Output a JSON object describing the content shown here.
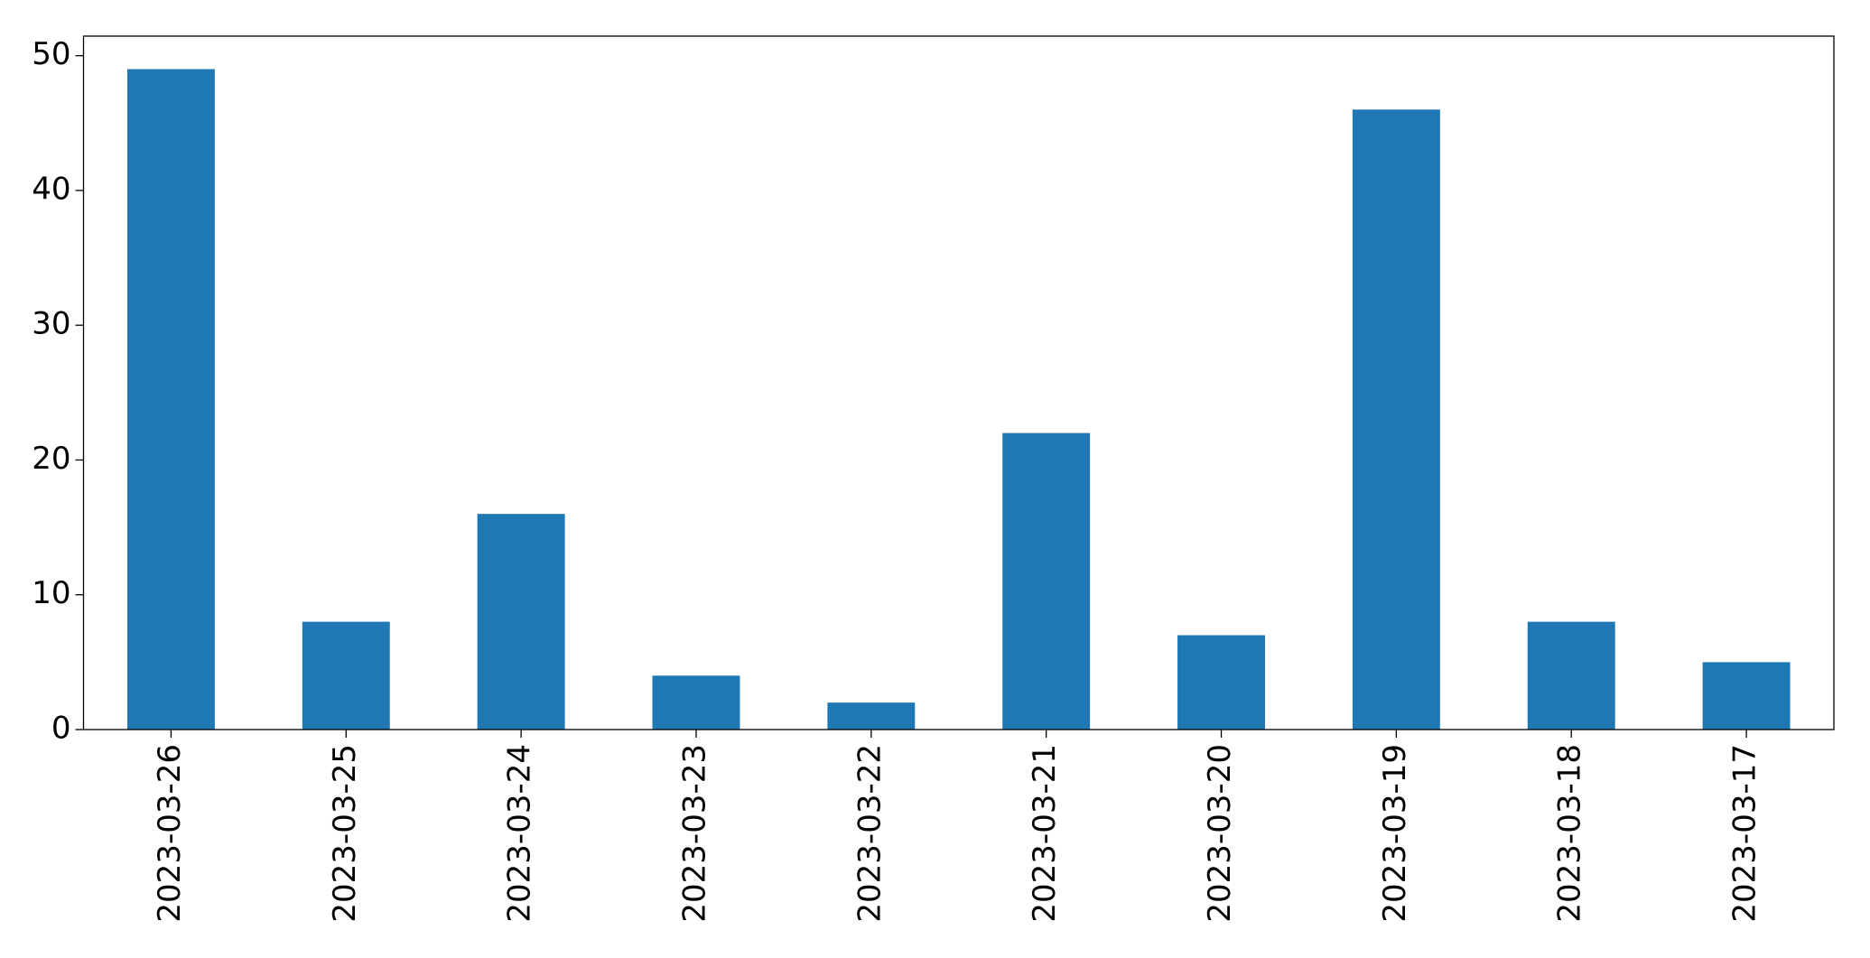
{
  "chart_data": {
    "type": "bar",
    "categories": [
      "2023-03-26",
      "2023-03-25",
      "2023-03-24",
      "2023-03-23",
      "2023-03-22",
      "2023-03-21",
      "2023-03-20",
      "2023-03-19",
      "2023-03-18",
      "2023-03-17"
    ],
    "values": [
      49,
      8,
      16,
      4,
      2,
      22,
      7,
      46,
      8,
      5
    ],
    "color": "#1f77b4",
    "ylim": [
      0,
      51.45
    ],
    "yticks": [
      0,
      10,
      20,
      30,
      40,
      50
    ],
    "grid": false
  }
}
